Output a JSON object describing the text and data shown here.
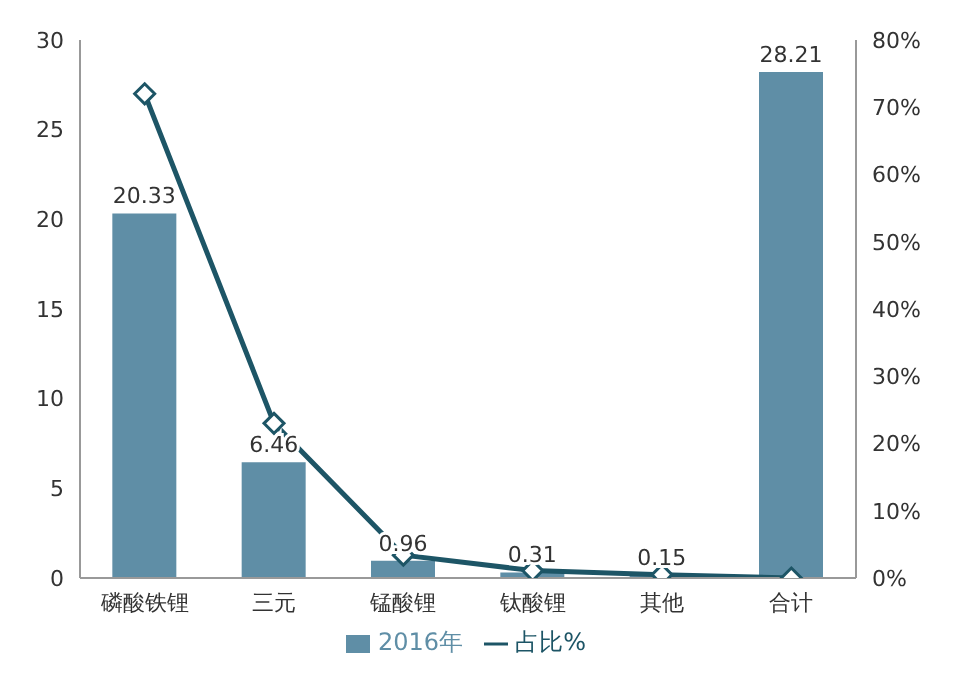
{
  "chart_data": {
    "type": "bar",
    "categories": [
      "磷酸铁锂",
      "三元",
      "锰酸锂",
      "钛酸锂",
      "其他",
      "合计"
    ],
    "series": [
      {
        "name": "2016年",
        "color": "#5f8ea6",
        "values": [
          20.33,
          6.46,
          0.96,
          0.31,
          0.15,
          28.21
        ],
        "value_labels": [
          "20.33",
          "6.46",
          "0.96",
          "0.31",
          "0.15",
          "28.21"
        ]
      },
      {
        "name": "占比%",
        "type": "line",
        "axis": "y2",
        "color": "#1d5566",
        "values": [
          72,
          23,
          3.4,
          1.1,
          0.5,
          0
        ],
        "marker": "diamond"
      }
    ],
    "ylim": [
      0,
      30
    ],
    "yticks": [
      0,
      5,
      10,
      15,
      20,
      25,
      30
    ],
    "y2lim": [
      0,
      80
    ],
    "y2ticks": [
      {
        "value": 0,
        "label": "0%"
      },
      {
        "value": 10,
        "label": "10%"
      },
      {
        "value": 20,
        "label": "20%"
      },
      {
        "value": 30,
        "label": "30%"
      },
      {
        "value": 40,
        "label": "40%"
      },
      {
        "value": 50,
        "label": "50%"
      },
      {
        "value": 60,
        "label": "60%"
      },
      {
        "value": 70,
        "label": "70%"
      },
      {
        "value": 80,
        "label": "80%"
      }
    ],
    "grid": false,
    "legend": "bottom"
  }
}
